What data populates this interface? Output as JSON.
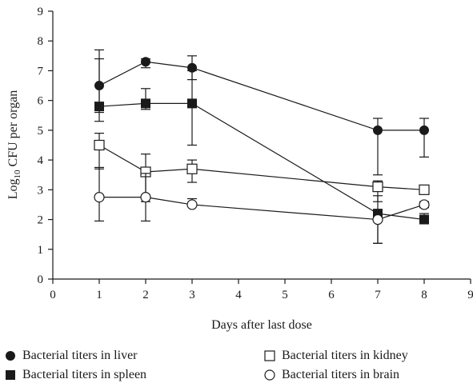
{
  "chart_data": {
    "type": "line",
    "title": "",
    "xlabel": "Days after last dose",
    "ylabel_main": "Log",
    "ylabel_sub": "10",
    "ylabel_rest": " CFU per organ",
    "xlim": [
      0,
      9
    ],
    "ylim": [
      0,
      9
    ],
    "xticks": [
      0,
      1,
      2,
      3,
      4,
      5,
      6,
      7,
      8,
      9
    ],
    "yticks": [
      0,
      1,
      2,
      3,
      4,
      5,
      6,
      7,
      8,
      9
    ],
    "grid": false,
    "legend_position": "bottom",
    "series": [
      {
        "name": "Bacterial titers in liver",
        "marker": "filled-circle",
        "x": [
          1,
          2,
          3,
          7,
          8
        ],
        "y": [
          6.5,
          7.3,
          7.1,
          5.0,
          5.0
        ],
        "err_low": [
          0.9,
          0.2,
          0.4,
          1.5,
          0.9
        ],
        "err_high": [
          1.2,
          0.1,
          0.4,
          0.4,
          0.4
        ]
      },
      {
        "name": "Bacterial titers in spleen",
        "marker": "filled-square",
        "x": [
          1,
          2,
          3,
          7,
          8
        ],
        "y": [
          5.8,
          5.9,
          5.9,
          2.2,
          2.0
        ],
        "err_low": [
          0.5,
          0.2,
          1.4,
          1.0,
          0.1
        ],
        "err_high": [
          1.6,
          0.5,
          1.1,
          0.6,
          0.2
        ]
      },
      {
        "name": "Bacterial titers in kidney",
        "marker": "open-square",
        "x": [
          1,
          2,
          3,
          7,
          8
        ],
        "y": [
          4.5,
          3.6,
          3.7,
          3.1,
          3.0
        ],
        "err_low": [
          0.8,
          1.0,
          0.45,
          0.5,
          0.0
        ],
        "err_high": [
          0.4,
          0.6,
          0.3,
          0.2,
          0.0
        ]
      },
      {
        "name": "Bacterial titers in brain",
        "marker": "open-circle",
        "x": [
          1,
          2,
          3,
          7,
          8
        ],
        "y": [
          2.75,
          2.75,
          2.5,
          2.0,
          2.5
        ],
        "err_low": [
          0.8,
          0.8,
          0.0,
          0.8,
          0.1
        ],
        "err_high": [
          1.0,
          0.8,
          0.2,
          0.1,
          0.1
        ]
      }
    ]
  },
  "legend": [
    {
      "label": "Bacterial titers in liver",
      "marker": "filled-circle"
    },
    {
      "label": "Bacterial titers in kidney",
      "marker": "open-square"
    },
    {
      "label": "Bacterial titers in spleen",
      "marker": "filled-square"
    },
    {
      "label": "Bacterial titers in brain",
      "marker": "open-circle"
    }
  ]
}
